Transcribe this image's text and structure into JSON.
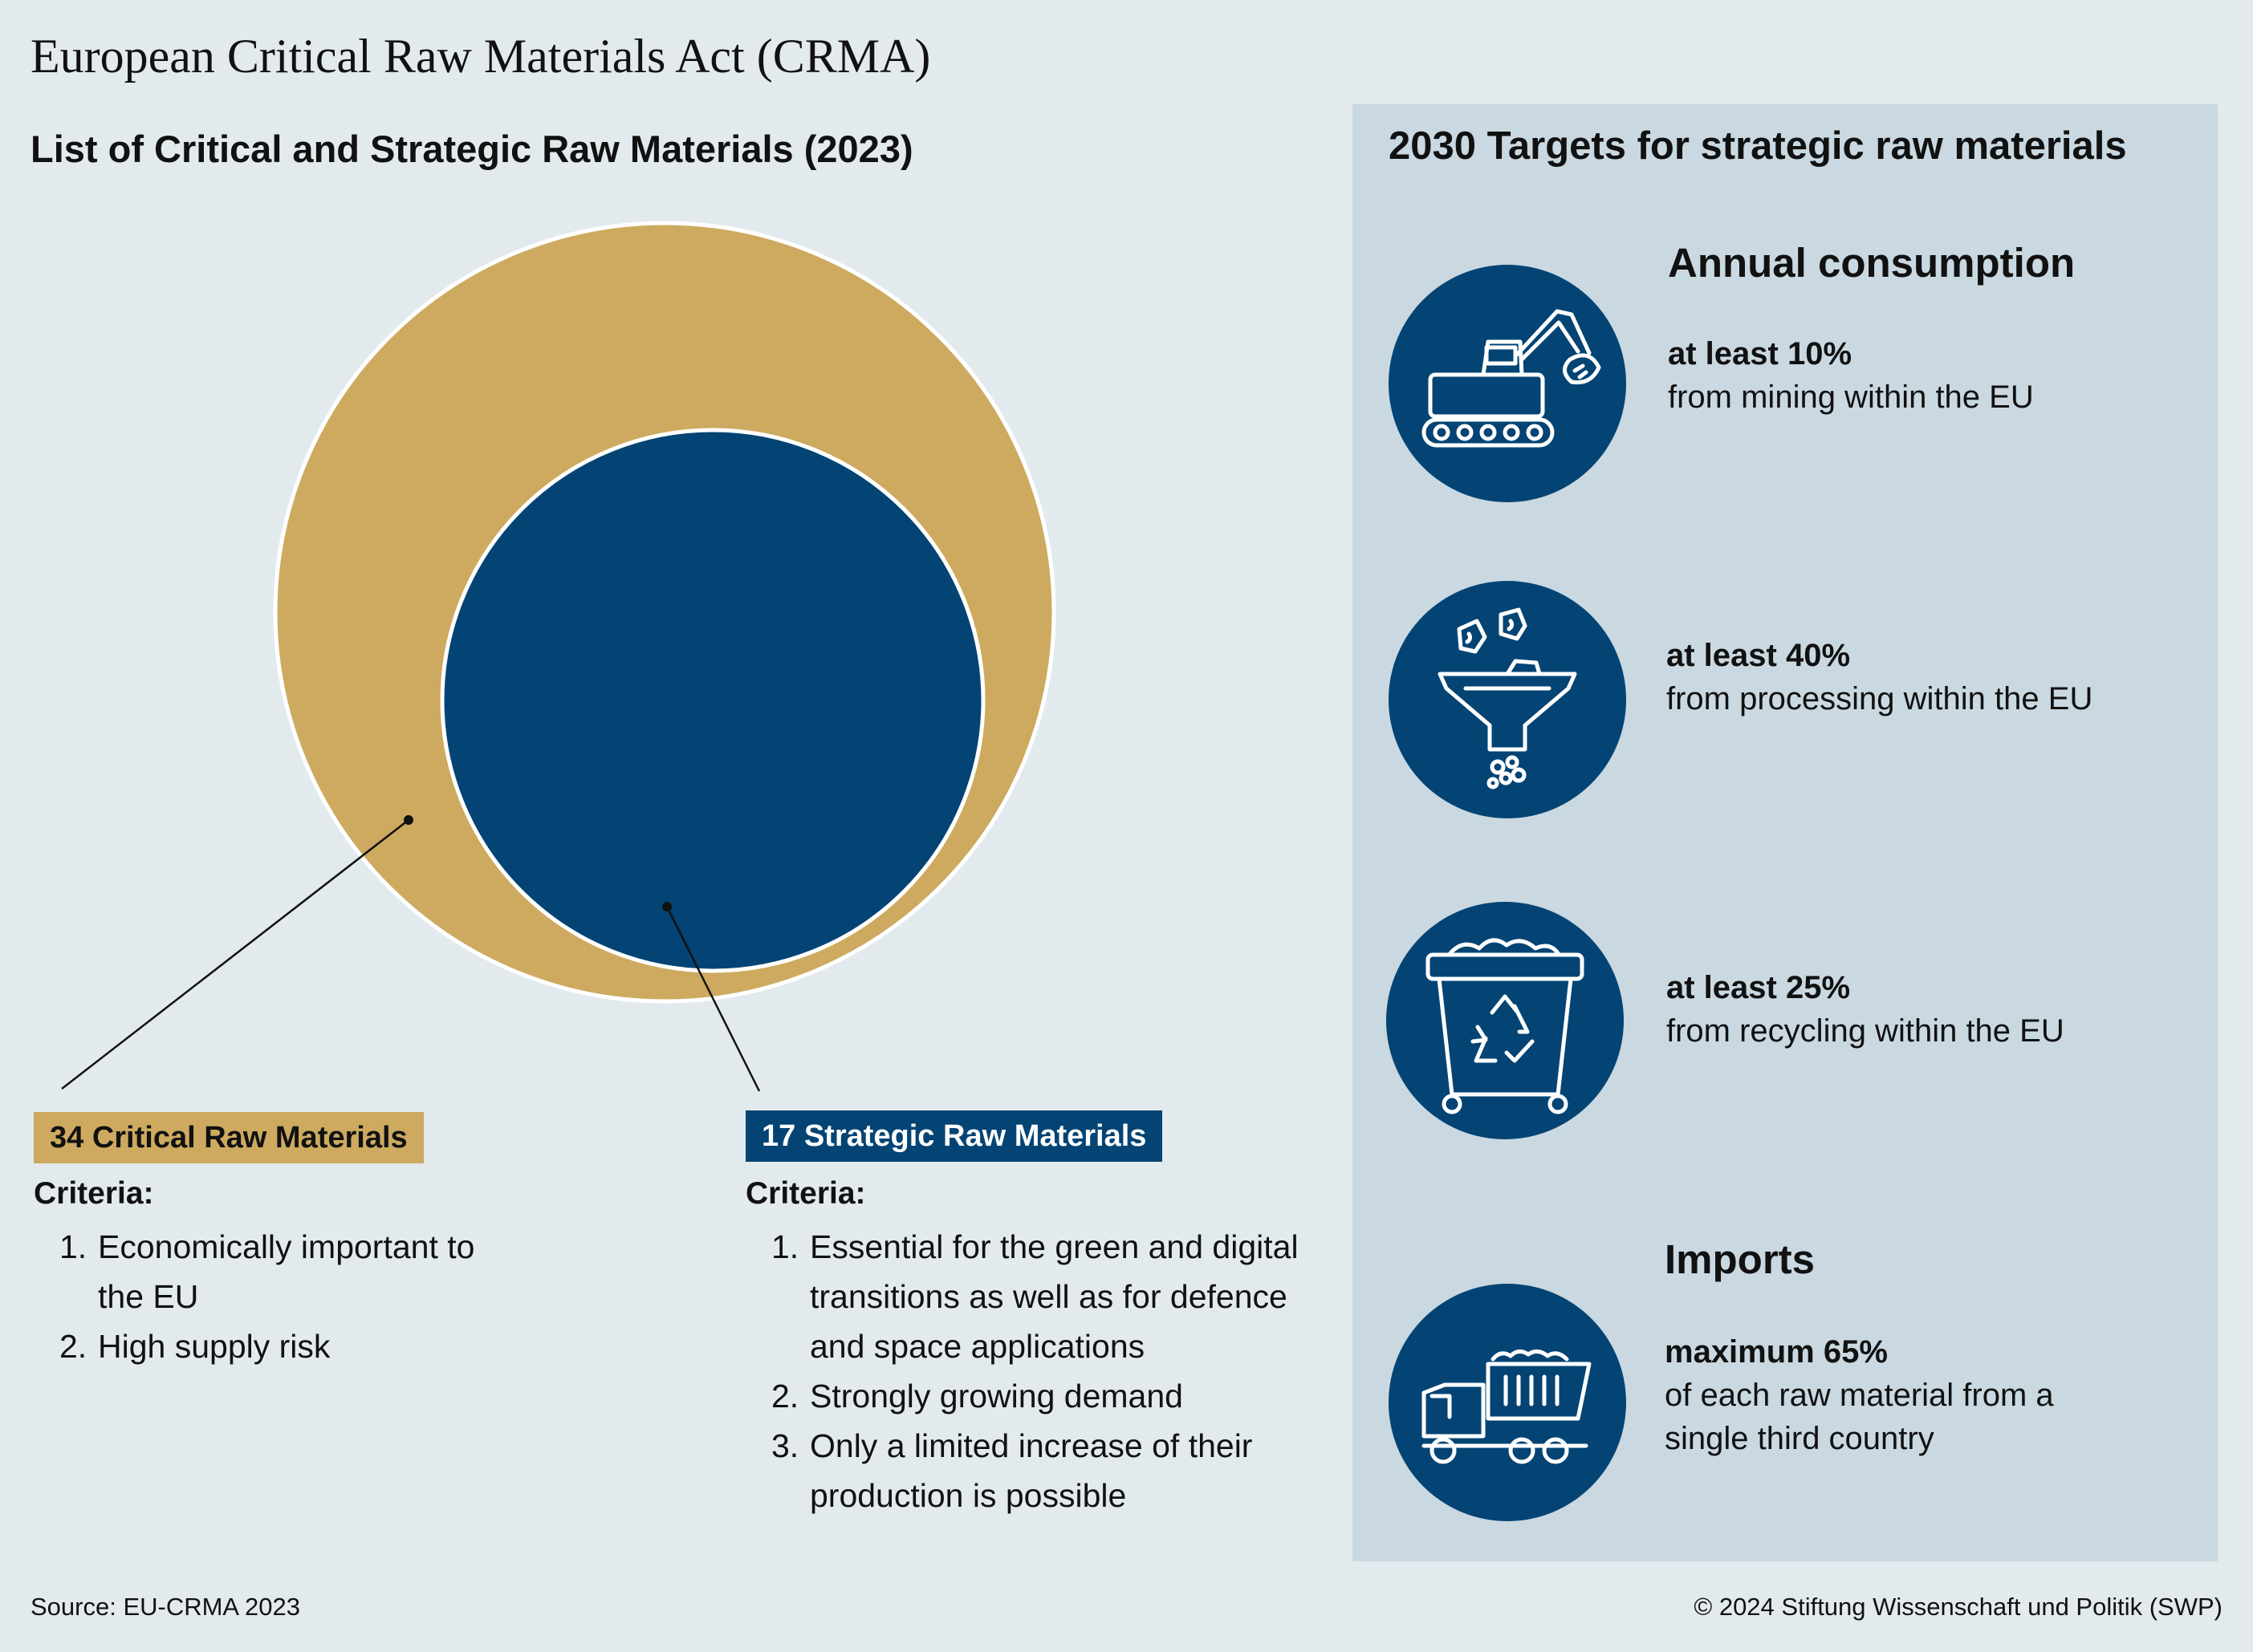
{
  "title": "European Critical Raw Materials Act (CRMA)",
  "left": {
    "title": "List of Critical and Strategic Raw Materials (2023)",
    "critical": {
      "label": "34 Critical Raw Materials",
      "criteria_label": "Criteria:",
      "criteria": [
        {
          "num": "1.",
          "text": "Economically important to the EU"
        },
        {
          "num": "2.",
          "text": "High supply risk"
        }
      ],
      "color": "#cdaa5f"
    },
    "strategic": {
      "label": "17 Strategic Raw Materials",
      "criteria_label": "Criteria:",
      "criteria": [
        {
          "num": "1.",
          "text": "Essential for the green and digital transitions as well as for defence and space applications"
        },
        {
          "num": "2.",
          "text": "Strongly growing demand"
        },
        {
          "num": "3.",
          "text": "Only a limited increase of their production is possible"
        }
      ],
      "color": "#044474"
    }
  },
  "right": {
    "title": "2030 Targets for strategic raw materials",
    "annual_heading": "Annual consumption",
    "imports_heading": "Imports",
    "targets": [
      {
        "icon": "excavator-icon",
        "strong": "at least 10%",
        "desc": "from mining within the EU"
      },
      {
        "icon": "funnel-icon",
        "strong": "at least 40%",
        "desc": "from processing within the EU"
      },
      {
        "icon": "recycling-bin-icon",
        "strong": "at least 25%",
        "desc": "from recycling within the EU"
      },
      {
        "icon": "dump-truck-icon",
        "strong": "maximum 65%",
        "desc": "of each raw material from a single third country"
      }
    ]
  },
  "footer": {
    "source": "Source: EU-CRMA 2023",
    "copyright": "© 2024 Stiftung Wissenschaft und Politik (SWP)"
  }
}
